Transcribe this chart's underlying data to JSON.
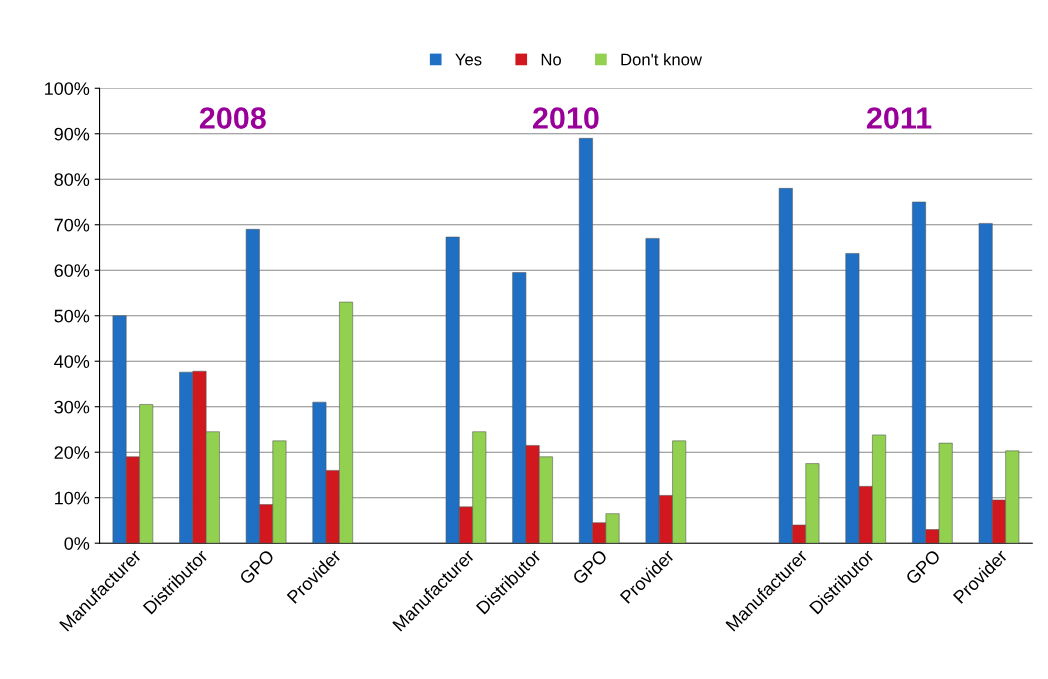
{
  "chart_data": {
    "type": "bar",
    "categories": [
      "Manufacturer",
      "Distributor",
      "GPO",
      "Provider",
      null,
      "Manufacturer",
      "Distributor",
      "GPO",
      "Provider",
      null,
      "Manufacturer",
      "Distributor",
      "GPO",
      "Provider"
    ],
    "series": [
      {
        "name": "Yes",
        "color": "#1f6fc5",
        "values": [
          50,
          37.6,
          69,
          31,
          null,
          67.3,
          59.5,
          89,
          67,
          null,
          78,
          63.7,
          75,
          70.3
        ]
      },
      {
        "name": "No",
        "color": "#d0181e",
        "values": [
          19,
          37.8,
          8.5,
          16,
          null,
          8,
          21.5,
          4.5,
          10.5,
          null,
          4,
          12.5,
          3,
          9.5
        ]
      },
      {
        "name": "Don't know",
        "color": "#92d050",
        "values": [
          30.5,
          24.5,
          22.5,
          53,
          null,
          24.5,
          19,
          6.5,
          22.5,
          null,
          17.5,
          23.8,
          22,
          20.3
        ]
      }
    ],
    "annotations": [
      "2008",
      "2010",
      "2011"
    ],
    "ylim": [
      0,
      100
    ],
    "yticks": [
      {
        "value": 0,
        "label": "0%"
      },
      {
        "value": 10,
        "label": "10%"
      },
      {
        "value": 20,
        "label": "20%"
      },
      {
        "value": 30,
        "label": "30%"
      },
      {
        "value": 40,
        "label": "40%"
      },
      {
        "value": 50,
        "label": "50%"
      },
      {
        "value": 60,
        "label": "60%"
      },
      {
        "value": 70,
        "label": "70%"
      },
      {
        "value": 80,
        "label": "80%"
      },
      {
        "value": 90,
        "label": "90%"
      },
      {
        "value": 100,
        "label": "100%"
      }
    ],
    "grid": "y",
    "legend": "top"
  }
}
